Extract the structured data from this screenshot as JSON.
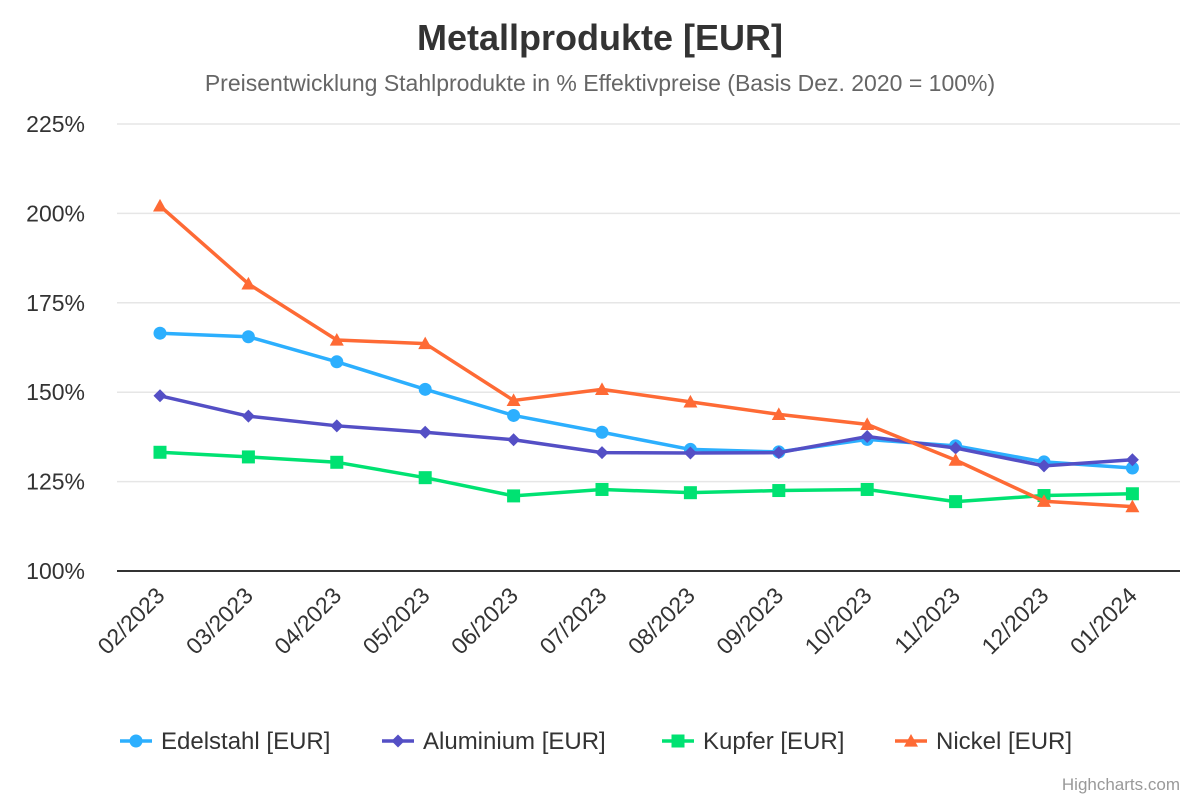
{
  "chart_data": {
    "type": "line",
    "title": "Metallprodukte [EUR]",
    "subtitle": "Preisentwicklung Stahlprodukte in % Effektivpreise (Basis Dez. 2020 = 100%)",
    "xlabel": "",
    "ylabel": "",
    "categories": [
      "02/2023",
      "03/2023",
      "04/2023",
      "05/2023",
      "06/2023",
      "07/2023",
      "08/2023",
      "09/2023",
      "10/2023",
      "11/2023",
      "12/2023",
      "01/2024"
    ],
    "ylim": [
      100,
      225
    ],
    "yticks": [
      100,
      125,
      150,
      175,
      200,
      225
    ],
    "ytick_labels": [
      "100%",
      "125%",
      "150%",
      "175%",
      "200%",
      "225%"
    ],
    "grid": true,
    "legend_position": "bottom",
    "series": [
      {
        "name": "Edelstahl [EUR]",
        "color": "#2caffe",
        "marker": "circle",
        "values": [
          166.5,
          165.5,
          158.5,
          150.8,
          143.5,
          138.8,
          134,
          133.3,
          136.8,
          135,
          130.5,
          128.8
        ]
      },
      {
        "name": "Aluminium [EUR]",
        "color": "#544fc5",
        "marker": "diamond",
        "values": [
          149,
          143.3,
          140.6,
          138.8,
          136.7,
          133.1,
          133,
          133.1,
          137.6,
          134.4,
          129.4,
          131.1
        ]
      },
      {
        "name": "Kupfer [EUR]",
        "color": "#00e272",
        "marker": "square",
        "values": [
          133.2,
          131.9,
          130.4,
          126.1,
          121,
          122.8,
          121.9,
          122.5,
          122.8,
          119.4,
          121.1,
          121.6
        ]
      },
      {
        "name": "Nickel [EUR]",
        "color": "#fe6a35",
        "marker": "triangle",
        "values": [
          202.1,
          180.3,
          164.6,
          163.6,
          147.7,
          150.8,
          147.3,
          143.8,
          141,
          131,
          119.5,
          118
        ]
      }
    ]
  },
  "credits": "Highcharts.com"
}
